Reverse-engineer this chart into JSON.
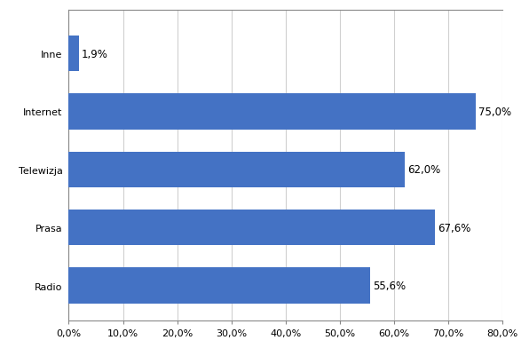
{
  "categories": [
    "Radio",
    "Prasa",
    "Telewizja",
    "Internet",
    "Inne"
  ],
  "values": [
    55.6,
    67.6,
    62.0,
    75.0,
    1.9
  ],
  "labels": [
    "55,6%",
    "67,6%",
    "62,0%",
    "75,0%",
    "1,9%"
  ],
  "bar_color": "#4472C4",
  "xlim": [
    0,
    80
  ],
  "xticks": [
    0,
    10,
    20,
    30,
    40,
    50,
    60,
    70,
    80
  ],
  "xtick_labels": [
    "0,0%",
    "10,0%",
    "20,0%",
    "30,0%",
    "40,0%",
    "50,0%",
    "60,0%",
    "70,0%",
    "80,0%"
  ],
  "background_color": "#ffffff",
  "grid_color": "#d0d0d0",
  "bar_height": 0.62,
  "label_fontsize": 8.5,
  "tick_fontsize": 8,
  "ylabel_fontsize": 8.5
}
